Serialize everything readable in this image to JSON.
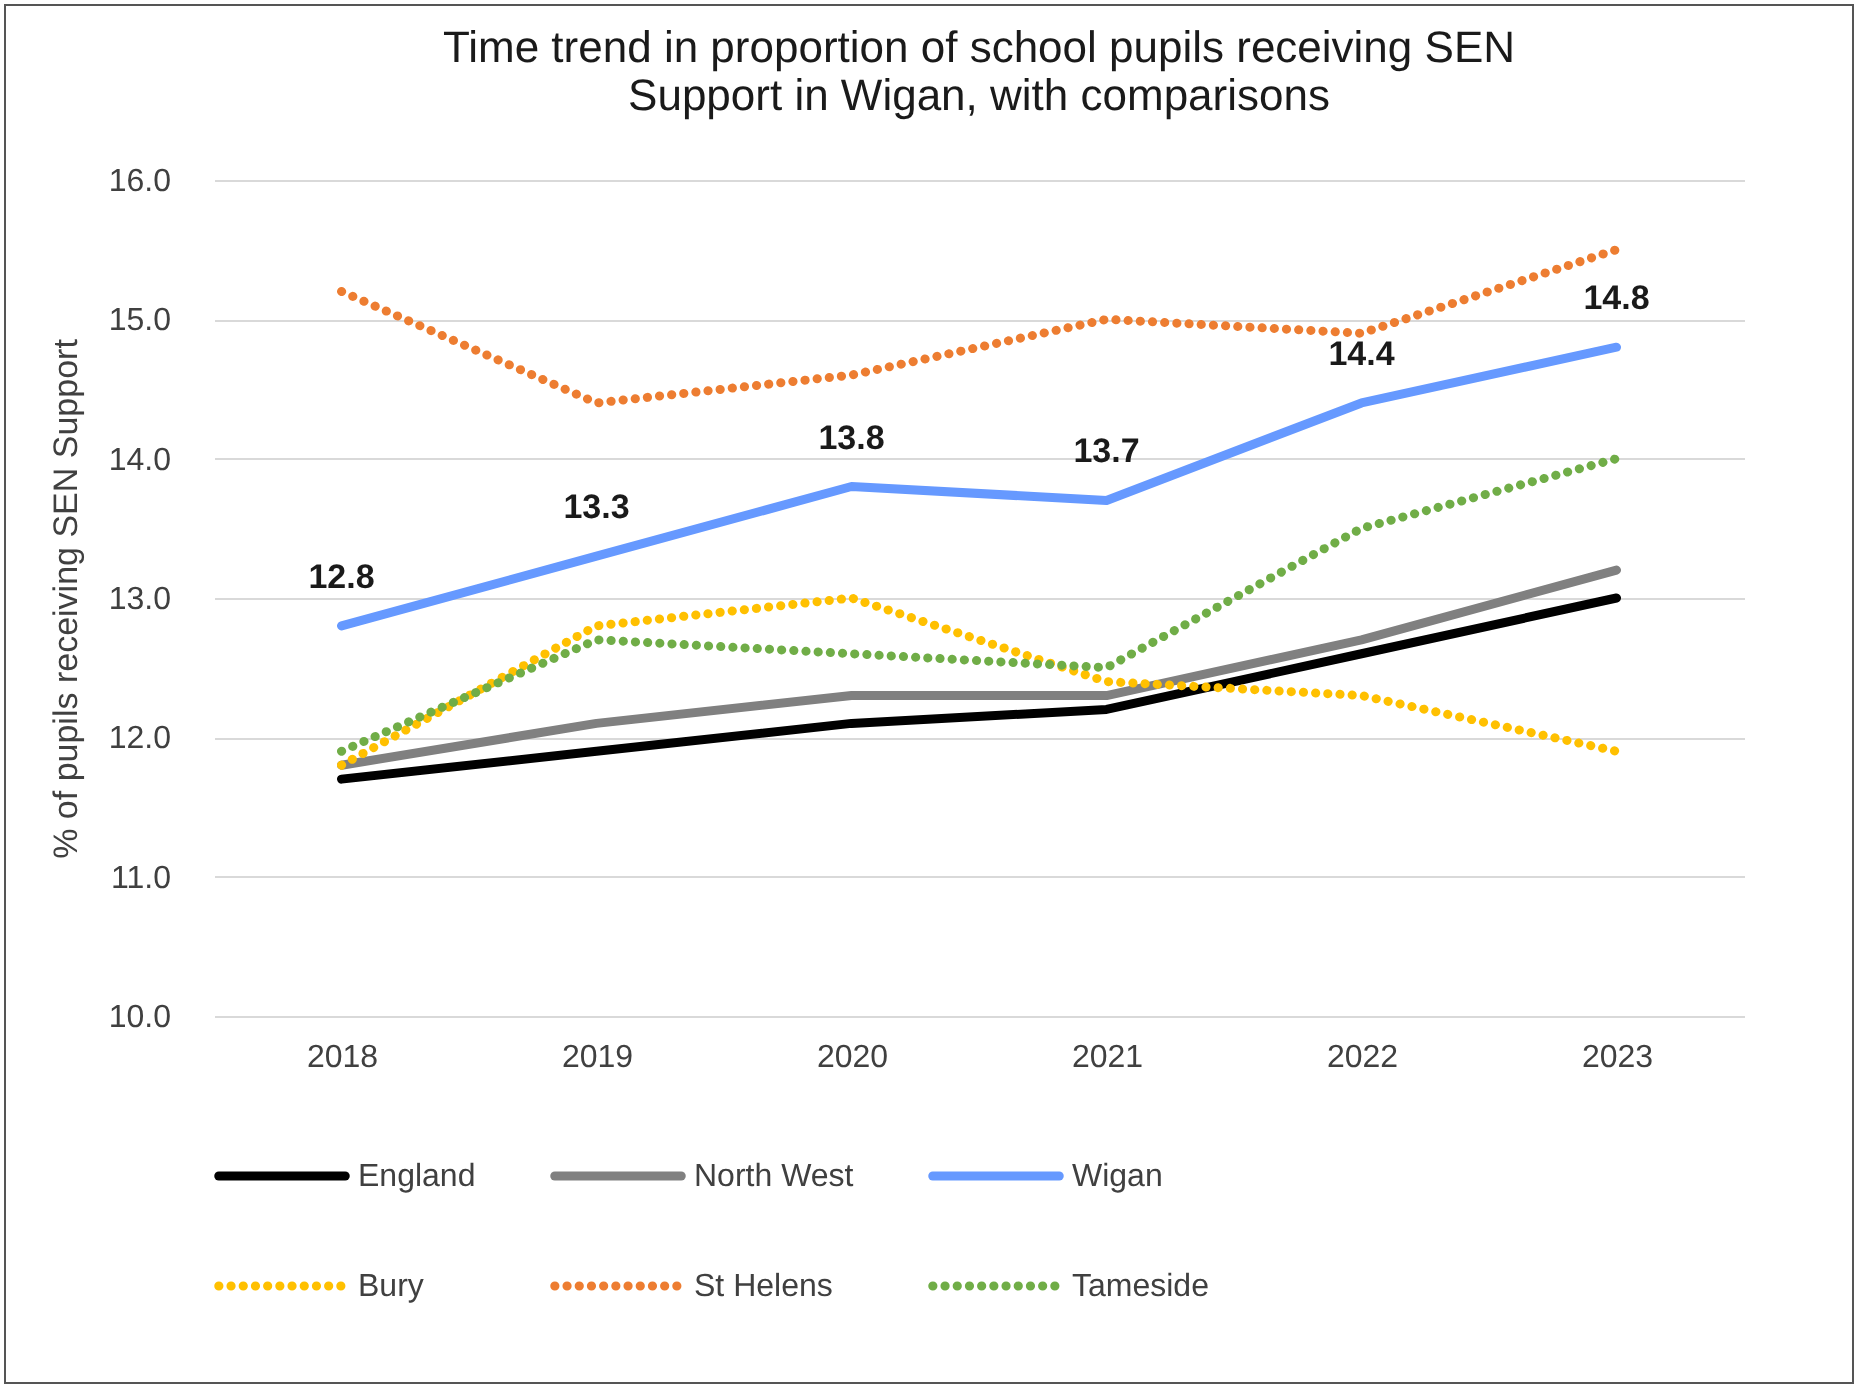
{
  "chart_data": {
    "type": "line",
    "title": "Time trend in proportion of school pupils receiving SEN Support in Wigan, with comparisons",
    "ylabel": "% of pupils receiving SEN Support",
    "categories": [
      "2018",
      "2019",
      "2020",
      "2021",
      "2022",
      "2023"
    ],
    "series": [
      {
        "name": "England",
        "color": "#000000",
        "line_style": "solid",
        "values": [
          11.7,
          11.9,
          12.1,
          12.2,
          12.6,
          13.0
        ]
      },
      {
        "name": "North West",
        "color": "#808080",
        "line_style": "solid",
        "values": [
          11.8,
          12.1,
          12.3,
          12.3,
          12.7,
          13.2
        ]
      },
      {
        "name": "Wigan",
        "color": "#6699ff",
        "line_style": "solid",
        "values": [
          12.8,
          13.3,
          13.8,
          13.7,
          14.4,
          14.8
        ],
        "value_labels": [
          "12.8",
          "13.3",
          "13.8",
          "13.7",
          "14.4",
          "14.8"
        ]
      },
      {
        "name": "Bury",
        "color": "#ffc000",
        "line_style": "dotted",
        "values": [
          11.8,
          12.8,
          13.0,
          12.4,
          12.3,
          11.9
        ]
      },
      {
        "name": "St Helens",
        "color": "#ed7d31",
        "line_style": "dotted",
        "values": [
          15.2,
          14.4,
          14.6,
          15.0,
          14.9,
          15.5
        ]
      },
      {
        "name": "Tameside",
        "color": "#70ad47",
        "line_style": "dotted",
        "values": [
          11.9,
          12.7,
          12.6,
          12.5,
          13.5,
          14.0
        ]
      }
    ],
    "ylim": [
      10,
      16
    ],
    "yticks": [
      {
        "value": 10,
        "label": "10.0"
      },
      {
        "value": 11,
        "label": "11.0"
      },
      {
        "value": 12,
        "label": "12.0"
      },
      {
        "value": 13,
        "label": "13.0"
      },
      {
        "value": 14,
        "label": "14.0"
      },
      {
        "value": 15,
        "label": "15.0"
      },
      {
        "value": 16,
        "label": "16.0"
      }
    ],
    "grid": "y",
    "legend": "bottom",
    "marker": "none"
  }
}
